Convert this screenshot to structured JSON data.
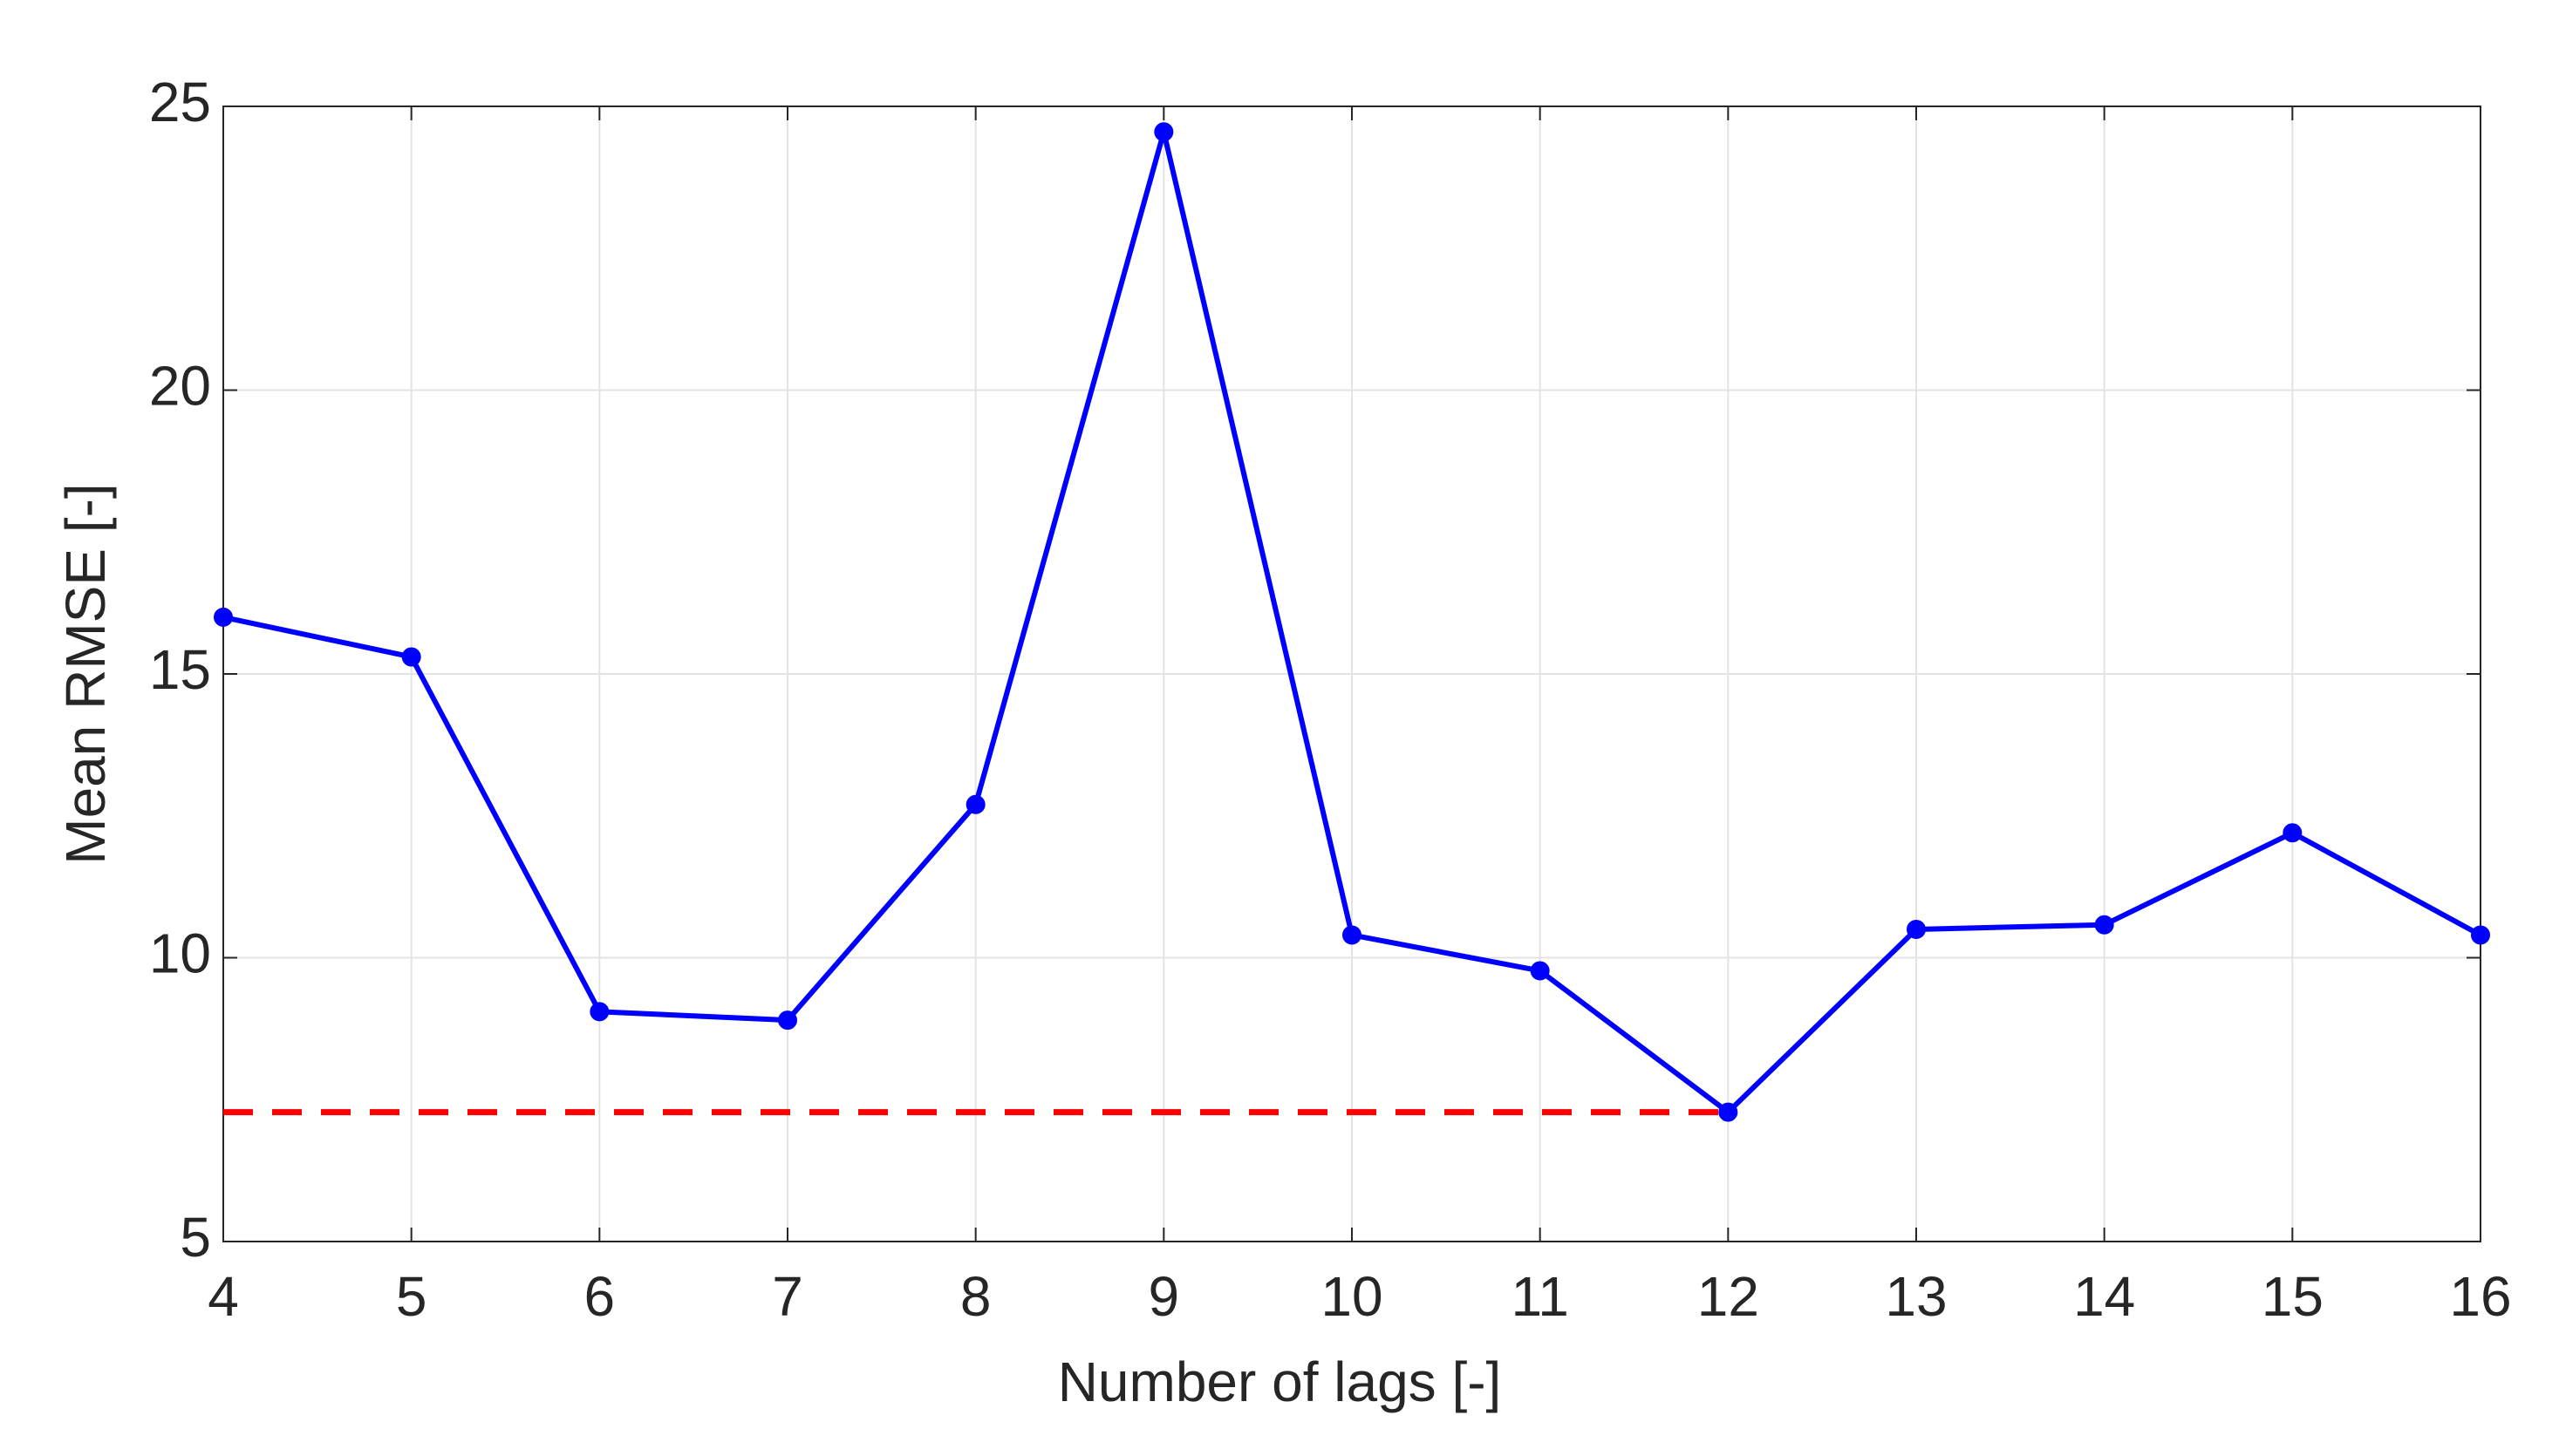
{
  "chart_data": {
    "type": "line",
    "x_label": "Number of lags [-]",
    "y_label": "Mean RMSE [-]",
    "x": [
      4,
      5,
      6,
      7,
      8,
      9,
      10,
      11,
      12,
      13,
      14,
      15,
      16
    ],
    "series": [
      {
        "color": "#0000ff",
        "values": [
          16.0,
          15.3,
          9.05,
          8.9,
          12.7,
          24.55,
          10.4,
          9.77,
          7.28,
          10.5,
          10.58,
          12.2,
          10.4
        ]
      }
    ],
    "reference_line": {
      "value": 7.28,
      "from": 4,
      "to": 12,
      "color": "#ff0000",
      "dashed": true
    },
    "xlim": [
      4,
      16
    ],
    "xticks": [
      4,
      5,
      6,
      7,
      8,
      9,
      10,
      11,
      12,
      13,
      14,
      15,
      16
    ],
    "ylim": [
      5,
      25
    ],
    "yticks": [
      5,
      10,
      15,
      20,
      25
    ],
    "grid": true
  }
}
